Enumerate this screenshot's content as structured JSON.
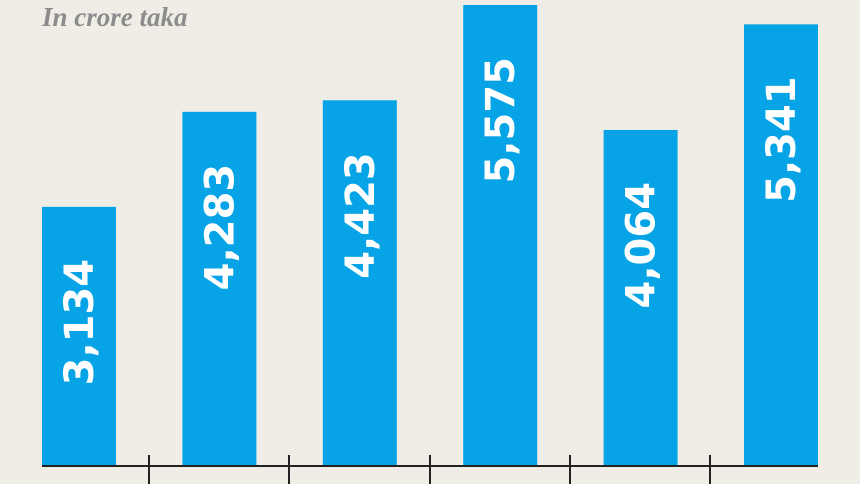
{
  "chart_data": {
    "type": "bar",
    "subtitle": "In crore taka",
    "categories": [
      null,
      null,
      null,
      null,
      null,
      null
    ],
    "values": [
      3134,
      4283,
      4423,
      5575,
      4064,
      5341
    ],
    "value_labels": [
      "3,134",
      "4,283",
      "4,423",
      "5,575",
      "4,064",
      "5,341"
    ],
    "color": "#06a4e6"
  }
}
